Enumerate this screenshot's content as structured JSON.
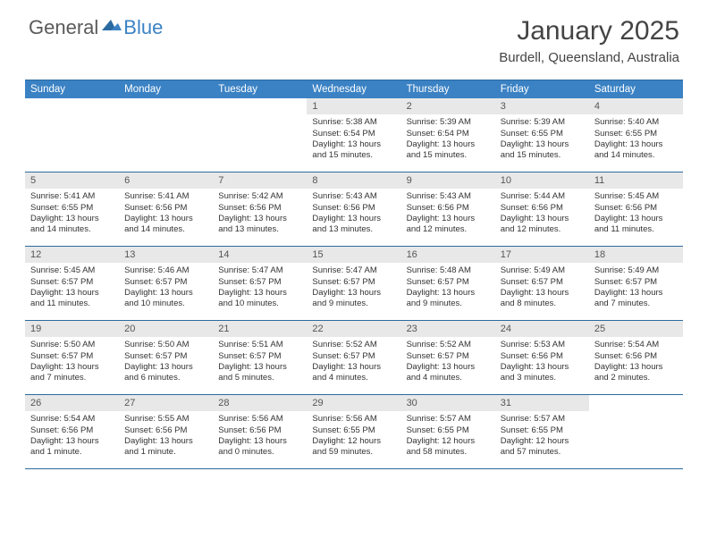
{
  "logo": {
    "general": "General",
    "blue": "Blue"
  },
  "title": "January 2025",
  "location": "Burdell, Queensland, Australia",
  "colors": {
    "header_bg": "#3b82c4",
    "border": "#2a6aa0",
    "daynum_bg": "#e8e8e8",
    "text": "#333333",
    "logo_gray": "#5a5a5a",
    "logo_blue": "#3b82c4"
  },
  "fonts": {
    "title_size": 30,
    "location_size": 15,
    "header_size": 11.5,
    "daynum_size": 11,
    "detail_size": 9.5
  },
  "dayNames": [
    "Sunday",
    "Monday",
    "Tuesday",
    "Wednesday",
    "Thursday",
    "Friday",
    "Saturday"
  ],
  "weeks": [
    [
      null,
      null,
      null,
      {
        "n": "1",
        "sr": "5:38 AM",
        "ss": "6:54 PM",
        "dl": "13 hours and 15 minutes."
      },
      {
        "n": "2",
        "sr": "5:39 AM",
        "ss": "6:54 PM",
        "dl": "13 hours and 15 minutes."
      },
      {
        "n": "3",
        "sr": "5:39 AM",
        "ss": "6:55 PM",
        "dl": "13 hours and 15 minutes."
      },
      {
        "n": "4",
        "sr": "5:40 AM",
        "ss": "6:55 PM",
        "dl": "13 hours and 14 minutes."
      }
    ],
    [
      {
        "n": "5",
        "sr": "5:41 AM",
        "ss": "6:55 PM",
        "dl": "13 hours and 14 minutes."
      },
      {
        "n": "6",
        "sr": "5:41 AM",
        "ss": "6:56 PM",
        "dl": "13 hours and 14 minutes."
      },
      {
        "n": "7",
        "sr": "5:42 AM",
        "ss": "6:56 PM",
        "dl": "13 hours and 13 minutes."
      },
      {
        "n": "8",
        "sr": "5:43 AM",
        "ss": "6:56 PM",
        "dl": "13 hours and 13 minutes."
      },
      {
        "n": "9",
        "sr": "5:43 AM",
        "ss": "6:56 PM",
        "dl": "13 hours and 12 minutes."
      },
      {
        "n": "10",
        "sr": "5:44 AM",
        "ss": "6:56 PM",
        "dl": "13 hours and 12 minutes."
      },
      {
        "n": "11",
        "sr": "5:45 AM",
        "ss": "6:56 PM",
        "dl": "13 hours and 11 minutes."
      }
    ],
    [
      {
        "n": "12",
        "sr": "5:45 AM",
        "ss": "6:57 PM",
        "dl": "13 hours and 11 minutes."
      },
      {
        "n": "13",
        "sr": "5:46 AM",
        "ss": "6:57 PM",
        "dl": "13 hours and 10 minutes."
      },
      {
        "n": "14",
        "sr": "5:47 AM",
        "ss": "6:57 PM",
        "dl": "13 hours and 10 minutes."
      },
      {
        "n": "15",
        "sr": "5:47 AM",
        "ss": "6:57 PM",
        "dl": "13 hours and 9 minutes."
      },
      {
        "n": "16",
        "sr": "5:48 AM",
        "ss": "6:57 PM",
        "dl": "13 hours and 9 minutes."
      },
      {
        "n": "17",
        "sr": "5:49 AM",
        "ss": "6:57 PM",
        "dl": "13 hours and 8 minutes."
      },
      {
        "n": "18",
        "sr": "5:49 AM",
        "ss": "6:57 PM",
        "dl": "13 hours and 7 minutes."
      }
    ],
    [
      {
        "n": "19",
        "sr": "5:50 AM",
        "ss": "6:57 PM",
        "dl": "13 hours and 7 minutes."
      },
      {
        "n": "20",
        "sr": "5:50 AM",
        "ss": "6:57 PM",
        "dl": "13 hours and 6 minutes."
      },
      {
        "n": "21",
        "sr": "5:51 AM",
        "ss": "6:57 PM",
        "dl": "13 hours and 5 minutes."
      },
      {
        "n": "22",
        "sr": "5:52 AM",
        "ss": "6:57 PM",
        "dl": "13 hours and 4 minutes."
      },
      {
        "n": "23",
        "sr": "5:52 AM",
        "ss": "6:57 PM",
        "dl": "13 hours and 4 minutes."
      },
      {
        "n": "24",
        "sr": "5:53 AM",
        "ss": "6:56 PM",
        "dl": "13 hours and 3 minutes."
      },
      {
        "n": "25",
        "sr": "5:54 AM",
        "ss": "6:56 PM",
        "dl": "13 hours and 2 minutes."
      }
    ],
    [
      {
        "n": "26",
        "sr": "5:54 AM",
        "ss": "6:56 PM",
        "dl": "13 hours and 1 minute."
      },
      {
        "n": "27",
        "sr": "5:55 AM",
        "ss": "6:56 PM",
        "dl": "13 hours and 1 minute."
      },
      {
        "n": "28",
        "sr": "5:56 AM",
        "ss": "6:56 PM",
        "dl": "13 hours and 0 minutes."
      },
      {
        "n": "29",
        "sr": "5:56 AM",
        "ss": "6:55 PM",
        "dl": "12 hours and 59 minutes."
      },
      {
        "n": "30",
        "sr": "5:57 AM",
        "ss": "6:55 PM",
        "dl": "12 hours and 58 minutes."
      },
      {
        "n": "31",
        "sr": "5:57 AM",
        "ss": "6:55 PM",
        "dl": "12 hours and 57 minutes."
      },
      null
    ]
  ],
  "labels": {
    "sunrise": "Sunrise: ",
    "sunset": "Sunset: ",
    "daylight": "Daylight: "
  }
}
